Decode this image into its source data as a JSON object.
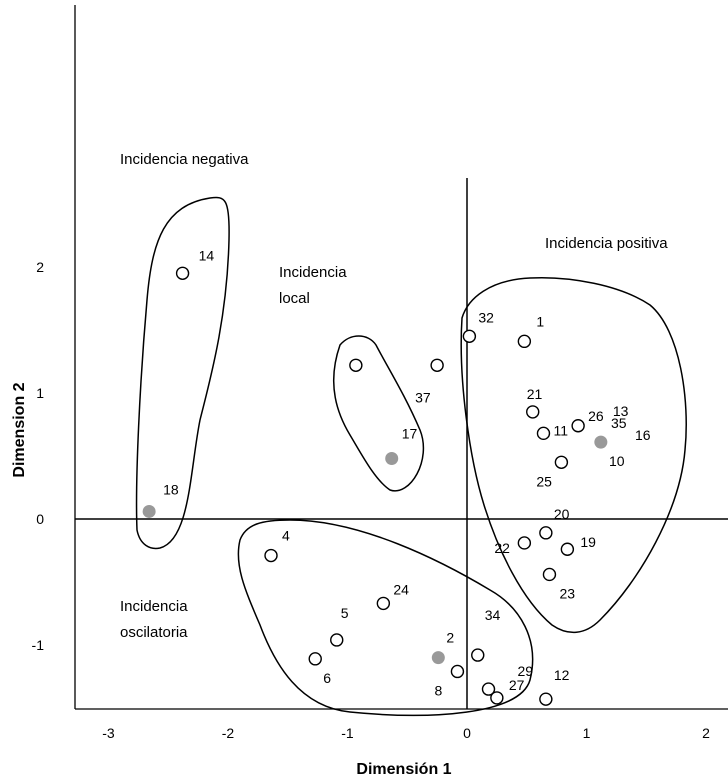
{
  "chart_data": {
    "type": "scatter",
    "xlabel": "Dimensión 1",
    "ylabel": "Dimension 2",
    "xlim": [
      -3,
      2
    ],
    "ylim": [
      -1.5,
      2
    ],
    "x_ticks": [
      "-3",
      "-2",
      "-1",
      "0",
      "1",
      "2"
    ],
    "y_ticks": [
      "-1",
      "0",
      "1",
      "2"
    ],
    "grid": false,
    "reference_lines": {
      "x": 0,
      "y": 0
    },
    "colors": {
      "hollow_fill": "#ffffff",
      "filled": "#999999",
      "stroke": "#000000"
    },
    "regions": [
      {
        "label_lines": [
          "Incidencia negativa"
        ]
      },
      {
        "label_lines": [
          "Incidencia",
          "local"
        ]
      },
      {
        "label_lines": [
          "Incidencia positiva"
        ]
      },
      {
        "label_lines": [
          "Incidencia",
          "oscilatoria"
        ]
      }
    ],
    "points": [
      {
        "label": "14",
        "x": -2.38,
        "y": 1.95,
        "filled": false
      },
      {
        "label": "18",
        "x": -2.66,
        "y": 0.06,
        "filled": true
      },
      {
        "label": "",
        "x": -0.93,
        "y": 1.22,
        "filled": false
      },
      {
        "label": "17",
        "x": -0.63,
        "y": 0.48,
        "filled": true
      },
      {
        "label": "37",
        "x": -0.25,
        "y": 1.22,
        "filled": false
      },
      {
        "label": "32",
        "x": 0.02,
        "y": 1.45,
        "filled": false
      },
      {
        "label": "1",
        "x": 0.48,
        "y": 1.41,
        "filled": false
      },
      {
        "label": "21",
        "x": 0.55,
        "y": 0.85,
        "filled": false
      },
      {
        "label": "11",
        "x": 0.64,
        "y": 0.68,
        "filled": false
      },
      {
        "label": "26",
        "x": 0.93,
        "y": 0.74,
        "filled": false
      },
      {
        "label": "13",
        "x": 1.12,
        "y": 0.61,
        "filled": true
      },
      {
        "label": "25",
        "x": 0.79,
        "y": 0.45,
        "filled": false
      },
      {
        "label": "20",
        "x": 0.66,
        "y": -0.11,
        "filled": false
      },
      {
        "label": "22",
        "x": 0.48,
        "y": -0.19,
        "filled": false
      },
      {
        "label": "19",
        "x": 0.84,
        "y": -0.24,
        "filled": false
      },
      {
        "label": "23",
        "x": 0.69,
        "y": -0.44,
        "filled": false
      },
      {
        "label": "4",
        "x": -1.64,
        "y": -0.29,
        "filled": false
      },
      {
        "label": "24",
        "x": -0.7,
        "y": -0.67,
        "filled": false
      },
      {
        "label": "5",
        "x": -1.09,
        "y": -0.96,
        "filled": false
      },
      {
        "label": "6",
        "x": -1.27,
        "y": -1.11,
        "filled": false
      },
      {
        "label": "2",
        "x": -0.24,
        "y": -1.1,
        "filled": true
      },
      {
        "label": "8",
        "x": -0.08,
        "y": -1.21,
        "filled": false
      },
      {
        "label": "34",
        "x": 0.09,
        "y": -1.08,
        "filled": false
      },
      {
        "label": "29",
        "x": 0.18,
        "y": -1.35,
        "filled": false
      },
      {
        "label": "27",
        "x": 0.25,
        "y": -1.42,
        "filled": false
      },
      {
        "label": "12",
        "x": 0.66,
        "y": -1.43,
        "filled": false
      }
    ],
    "extra_labels": [
      "35",
      "16",
      "10"
    ]
  }
}
